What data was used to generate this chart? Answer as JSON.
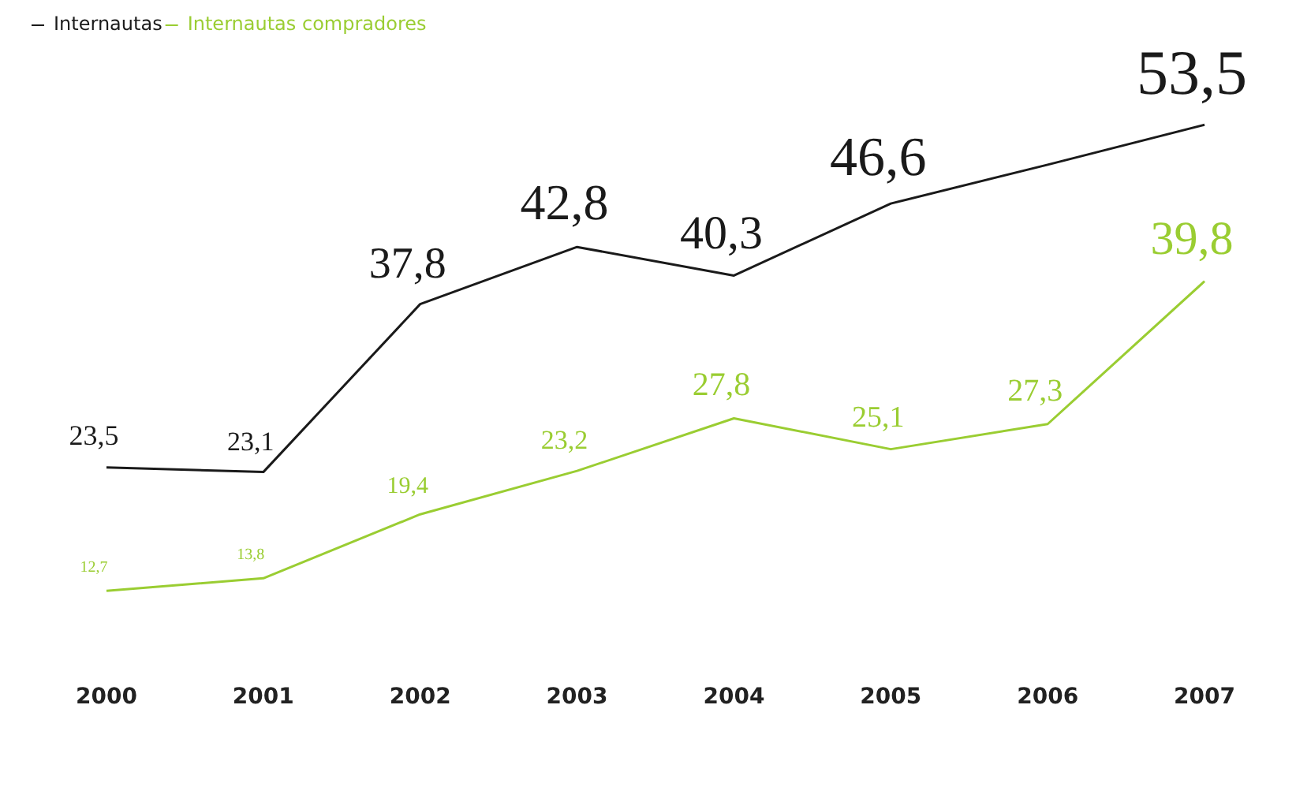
{
  "chart_data": {
    "type": "line",
    "categories": [
      "2000",
      "2001",
      "2002",
      "2003",
      "2004",
      "2005",
      "2006",
      "2007"
    ],
    "series": [
      {
        "name": "Internautas",
        "color": "#1a1a1a",
        "values": [
          23.5,
          23.1,
          37.8,
          42.8,
          40.3,
          46.6,
          50.0,
          53.5
        ],
        "value_labels": [
          "23,5",
          "23,1",
          "37,8",
          "42,8",
          "40,3",
          "46,6",
          null,
          "53,5"
        ]
      },
      {
        "name": "Internautas compradores",
        "color": "#9acd32",
        "values": [
          12.7,
          13.8,
          19.4,
          23.2,
          27.8,
          25.1,
          27.3,
          39.8
        ],
        "value_labels": [
          "12,7",
          "13,8",
          "19,4",
          "23,2",
          "27,8",
          "25,1",
          "27,3",
          "39,8"
        ]
      }
    ],
    "tick_labels": "x",
    "grid": false,
    "legend": "top left",
    "marker": "none",
    "line_style": "solid"
  }
}
